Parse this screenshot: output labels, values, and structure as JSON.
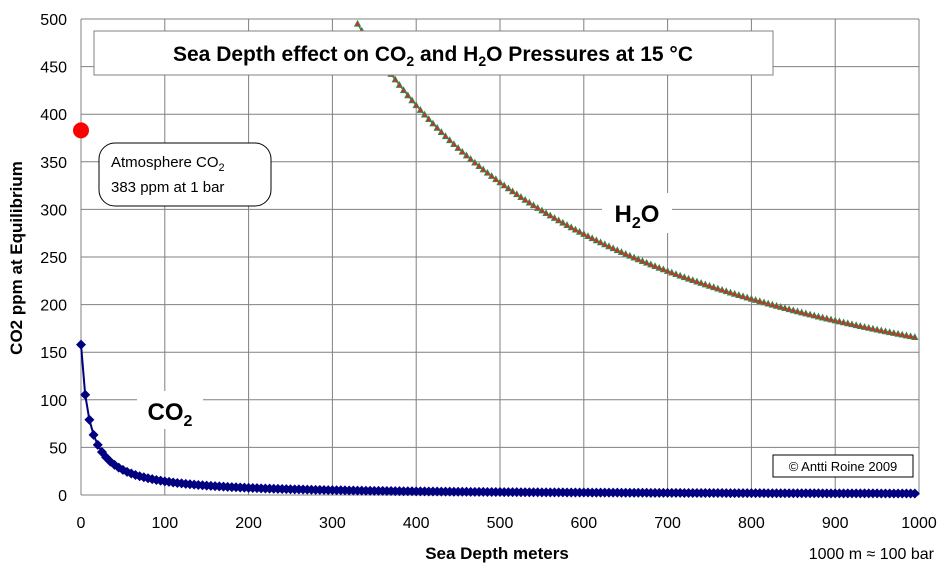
{
  "chart_data": {
    "type": "scatter",
    "title_parts": [
      "Sea Depth effect on CO",
      "2",
      " and H",
      "2",
      "O Pressures at 15 °C"
    ],
    "xlabel": "Sea Depth meters",
    "ylabel": "CO2 ppm at Equilibrium",
    "xlim": [
      0,
      1000
    ],
    "ylim": [
      0,
      500
    ],
    "xticks": [
      0,
      100,
      200,
      300,
      400,
      500,
      600,
      700,
      800,
      900,
      1000
    ],
    "yticks": [
      0,
      50,
      100,
      150,
      200,
      250,
      300,
      350,
      400,
      450,
      500
    ],
    "grid": true,
    "series": [
      {
        "name": "CO2",
        "label_parts": [
          "CO",
          "2"
        ],
        "color": "#000080",
        "marker": "diamond",
        "x_start": 0,
        "x_end": 995,
        "x_step": 5,
        "formula": "158 / (1 + x / 10)",
        "note": "CO2 equilibrium curve: 158 ppm at 0 m decreasing to about 1.6 ppm at 1000 m"
      },
      {
        "name": "H2O",
        "label_parts": [
          "H",
          "2",
          "O"
        ],
        "color": "#2e8b57",
        "marker_fill": "#d03020",
        "marker": "triangle",
        "x_start": 325,
        "x_end": 995,
        "x_step": 5,
        "formula": "165800 / (x + 5)",
        "note": "H2O curve: about 500 at 325 m decreasing to about 166 at 1000 m"
      }
    ],
    "atmosphere_point": {
      "x": 0,
      "y": 383,
      "color": "#ff0000"
    },
    "annotations": {
      "atmosphere_line1_parts": [
        "Atmosphere CO",
        "2"
      ],
      "atmosphere_line2": "383 ppm at 1 bar",
      "copyright": "© Antti Roine 2009",
      "footnote": "1000 m ≈ 100 bar"
    }
  },
  "colors": {
    "grid": "#808080",
    "co2": "#000080",
    "h2o_line": "#2e8b57",
    "h2o_marker": "#d03020",
    "atmosphere": "#ff0000"
  }
}
